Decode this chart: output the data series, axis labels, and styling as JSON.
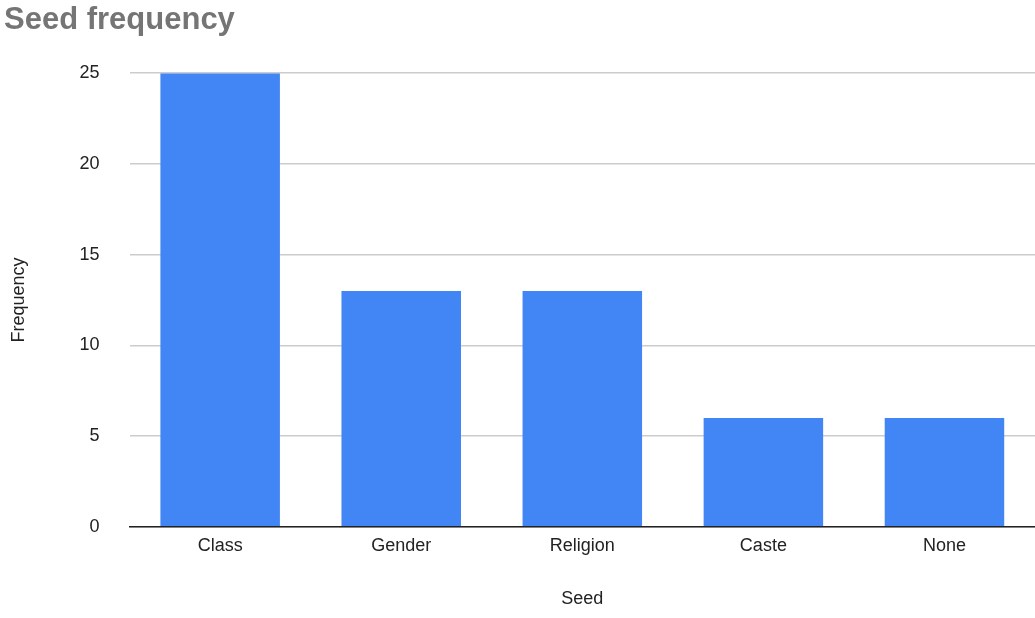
{
  "chart_data": {
    "type": "bar",
    "title": "Seed frequency",
    "xlabel": "Seed",
    "ylabel": "Frequency",
    "categories": [
      "Class",
      "Gender",
      "Religion",
      "Caste",
      "None"
    ],
    "values": [
      25,
      13,
      13,
      6,
      6
    ],
    "color": "#4285f4",
    "ylim": [
      0,
      25
    ],
    "yticks": [
      0,
      5,
      10,
      15,
      20,
      25
    ],
    "grid": "y",
    "legend": false
  }
}
